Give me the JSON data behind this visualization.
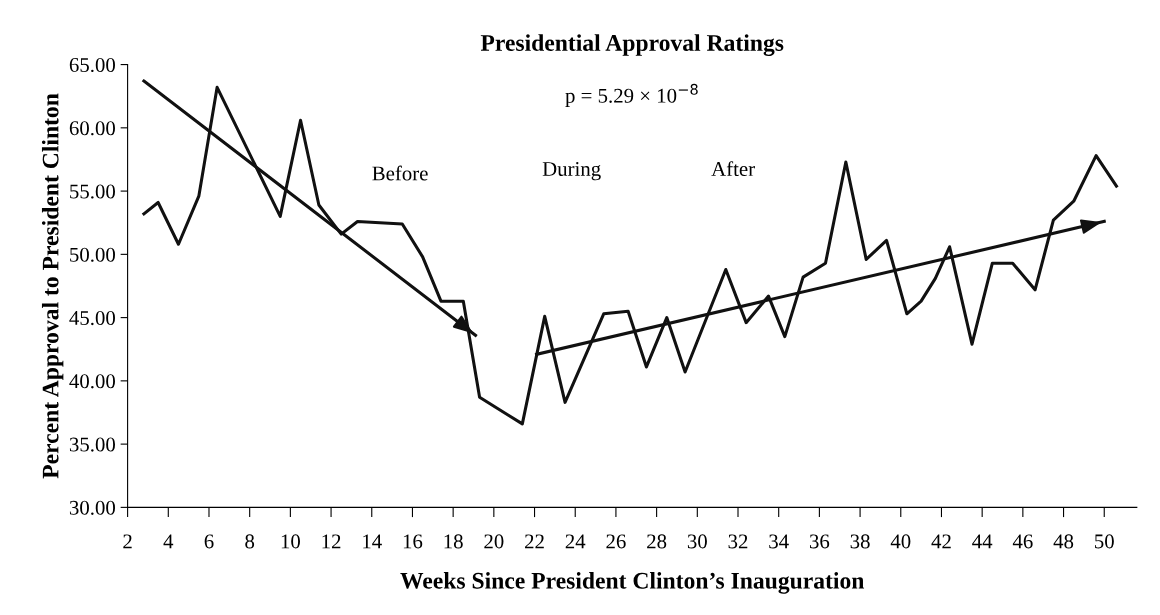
{
  "chart_data": {
    "type": "line",
    "title": "Presidential Approval Ratings",
    "xlabel": "Weeks Since President Clinton’s Inauguration",
    "ylabel": "Percent Approval to President Clinton",
    "series": [
      {
        "color": "#111111",
        "x": [
          2.8,
          3.5,
          4.5,
          5.5,
          6.4,
          9.5,
          10.5,
          11.4,
          12.5,
          13.3,
          15.5,
          16.5,
          17.4,
          18.5,
          19.3,
          21.4,
          22.5,
          23.5,
          25.4,
          26.6,
          27.5,
          28.5,
          29.4,
          31.4,
          32.4,
          33.5,
          34.3,
          35.2,
          36.3,
          37.3,
          38.3,
          39.3,
          40.3,
          41.0,
          41.7,
          42.4,
          43.5,
          44.5,
          45.5,
          46.6,
          47.5,
          48.5,
          49.6,
          50.6
        ],
        "values": [
          53.2,
          54.1,
          50.8,
          54.6,
          63.2,
          53.0,
          60.6,
          53.9,
          51.6,
          52.6,
          52.4,
          49.8,
          46.3,
          46.3,
          38.7,
          36.6,
          45.1,
          38.3,
          45.3,
          45.5,
          41.1,
          45.0,
          40.7,
          48.8,
          44.6,
          46.7,
          43.5,
          48.2,
          49.3,
          57.3,
          49.6,
          51.1,
          45.3,
          46.3,
          48.1,
          50.6,
          42.9,
          49.3,
          49.3,
          47.2,
          52.7,
          54.2,
          57.8,
          55.4
        ]
      },
      {
        "color": "#111111",
        "x": [
          2.8,
          19.1
        ],
        "values": [
          63.7,
          43.6
        ]
      },
      {
        "color": "#111111",
        "x": [
          22.1,
          50.0
        ],
        "values": [
          42.1,
          52.6
        ]
      }
    ],
    "xlim": [
      2,
      51.6
    ],
    "xticks": [
      2,
      4,
      6,
      8,
      10,
      12,
      14,
      16,
      18,
      20,
      22,
      24,
      26,
      28,
      30,
      32,
      34,
      36,
      38,
      40,
      42,
      44,
      46,
      48,
      50
    ],
    "ylim": [
      30,
      65
    ],
    "yticks": [
      {
        "value": 30,
        "label": "30.00"
      },
      {
        "value": 35,
        "label": "35.00"
      },
      {
        "value": 40,
        "label": "40.00"
      },
      {
        "value": 45,
        "label": "45.00"
      },
      {
        "value": 50,
        "label": "50.00"
      },
      {
        "value": 55,
        "label": "55.00"
      },
      {
        "value": 60,
        "label": "60.00"
      },
      {
        "value": 65,
        "label": "65.00"
      }
    ],
    "grid": false,
    "annotations": [
      "p = 5.29 × 10$^{−8}$",
      "Before",
      "During",
      "After"
    ]
  }
}
